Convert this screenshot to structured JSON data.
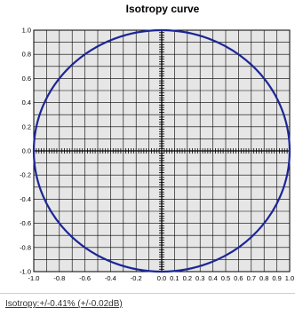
{
  "chart_data": {
    "type": "line",
    "title": "Isotropy curve",
    "xlim": [
      -1.0,
      1.0
    ],
    "ylim": [
      -1.0,
      1.0
    ],
    "x_ticks": [
      "-1.0",
      "-0.8",
      "-0.6",
      "-0.4",
      "-0.2",
      "0.0",
      "0.1",
      "0.2",
      "0.3",
      "0.4",
      "0.5",
      "0.6",
      "0.7",
      "0.8",
      "0.9",
      "1.0"
    ],
    "y_ticks": [
      "1.0",
      "0.8",
      "0.6",
      "0.4",
      "0.2",
      "0.0",
      "-0.2",
      "-0.4",
      "-0.6",
      "-0.8",
      "-1.0"
    ],
    "series": [
      {
        "shape": "circle",
        "center": [
          0.0,
          0.0
        ],
        "radius": 1.0,
        "color": "#1c2696"
      }
    ],
    "grid": true,
    "plot_background": "#e6e6e6",
    "grid_color": "#000000"
  },
  "footer": {
    "text": "Isotropy:+/-0.41% (+/-0.02dB)"
  }
}
